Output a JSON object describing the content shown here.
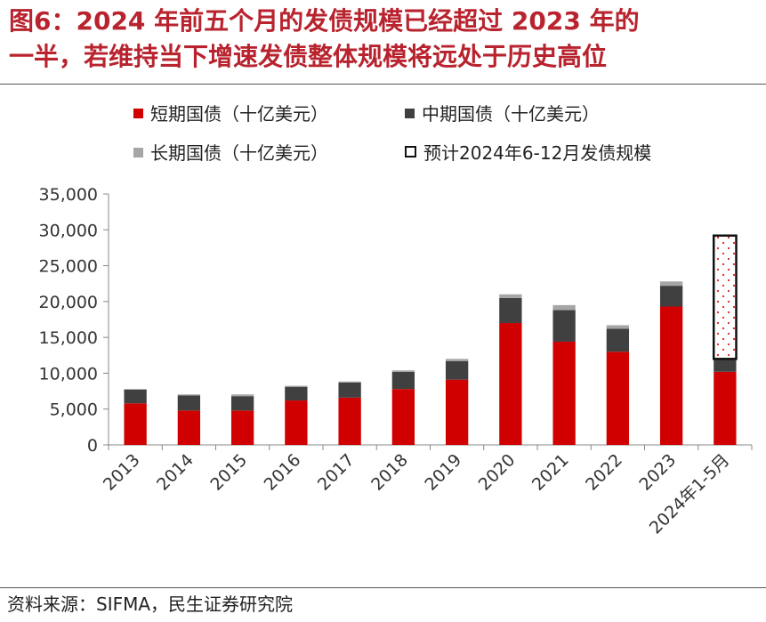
{
  "title_lines": [
    "图6：2024 年前五个月的发债规模已经超过 2023 年的",
    "一半，若维持当下增速发债整体规模将远处于历史高位"
  ],
  "legend": {
    "short": "短期国债（十亿美元）",
    "mid": "中期国债（十亿美元）",
    "long": "长期国债（十亿美元）",
    "projection": "预计2024年6-12月发债规模"
  },
  "source": "资料来源：SIFMA，民生证券研究院",
  "colors": {
    "short": "#d00000",
    "mid": "#404040",
    "long": "#a6a6a6",
    "projection_border": "#111111",
    "projection_dots": "#e02020",
    "title": "#b8232e"
  },
  "chart_data": {
    "type": "bar",
    "stacked": true,
    "categories": [
      "2013",
      "2014",
      "2015",
      "2016",
      "2017",
      "2018",
      "2019",
      "2020",
      "2021",
      "2022",
      "2023",
      "2024年1-5月"
    ],
    "series": [
      {
        "name": "短期国债（十亿美元）",
        "key": "short",
        "values": [
          5800,
          4800,
          4800,
          6200,
          6600,
          7800,
          9100,
          17000,
          14400,
          13000,
          19300,
          10200
        ]
      },
      {
        "name": "中期国债（十亿美元）",
        "key": "mid",
        "values": [
          1900,
          2100,
          2000,
          1900,
          2100,
          2400,
          2600,
          3500,
          4400,
          3200,
          2900,
          1800
        ]
      },
      {
        "name": "长期国债（十亿美元）",
        "key": "long",
        "values": [
          100,
          150,
          250,
          150,
          150,
          200,
          300,
          500,
          700,
          500,
          600,
          0
        ]
      },
      {
        "name": "预计2024年6-12月发债规模",
        "key": "projection",
        "values": [
          0,
          0,
          0,
          0,
          0,
          0,
          0,
          0,
          0,
          0,
          0,
          17200
        ]
      }
    ],
    "y_ticks": [
      "0",
      "5,000",
      "10,000",
      "15,000",
      "20,000",
      "25,000",
      "30,000",
      "35,000"
    ],
    "ylim": [
      0,
      35000
    ],
    "y_step": 5000,
    "xlabel": "",
    "ylabel": "",
    "legend_position": "top"
  }
}
